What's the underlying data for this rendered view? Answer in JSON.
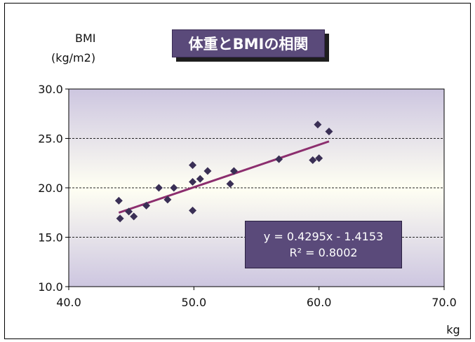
{
  "chart_data": {
    "type": "scatter",
    "title": "体重とBMIの相関",
    "ylabel_line1": "BMI",
    "ylabel_line2": "(kg/m2)",
    "xlabel": "kg",
    "xlim": [
      40,
      70
    ],
    "ylim": [
      10,
      30
    ],
    "xticks": [
      "40.0",
      "50.0",
      "60.0",
      "70.0"
    ],
    "yticks": [
      "10.0",
      "15.0",
      "20.0",
      "25.0",
      "30.0"
    ],
    "points": [
      {
        "x": 44.0,
        "y": 18.7
      },
      {
        "x": 44.1,
        "y": 16.9
      },
      {
        "x": 44.8,
        "y": 17.6
      },
      {
        "x": 45.2,
        "y": 17.1
      },
      {
        "x": 46.2,
        "y": 18.2
      },
      {
        "x": 47.2,
        "y": 20.0
      },
      {
        "x": 47.9,
        "y": 18.8
      },
      {
        "x": 48.4,
        "y": 20.0
      },
      {
        "x": 49.9,
        "y": 22.3
      },
      {
        "x": 49.9,
        "y": 20.6
      },
      {
        "x": 49.9,
        "y": 17.7
      },
      {
        "x": 50.5,
        "y": 20.9
      },
      {
        "x": 51.1,
        "y": 21.7
      },
      {
        "x": 52.9,
        "y": 20.4
      },
      {
        "x": 53.2,
        "y": 21.7
      },
      {
        "x": 56.8,
        "y": 22.9
      },
      {
        "x": 59.5,
        "y": 22.8
      },
      {
        "x": 60.0,
        "y": 23.0
      },
      {
        "x": 59.9,
        "y": 26.4
      },
      {
        "x": 60.8,
        "y": 25.7
      }
    ],
    "trendline": {
      "slope": 0.4295,
      "intercept": -1.4153,
      "x_range": [
        44.0,
        60.8
      ],
      "equation": "y = 0.4295x - 1.4153",
      "r_squared": "R² = 0.8002"
    },
    "grid": "horizontal dashed at 15, 20, 25",
    "colors": {
      "plot_top": "#cdc6e0",
      "plot_mid": "#fffff3",
      "plot_bottom": "#cdc6e0",
      "marker": "#3a2f55",
      "trendline": "#8c2e6e",
      "title_box": "#5a4a7a",
      "equation_box": "#5a4a7a"
    }
  }
}
